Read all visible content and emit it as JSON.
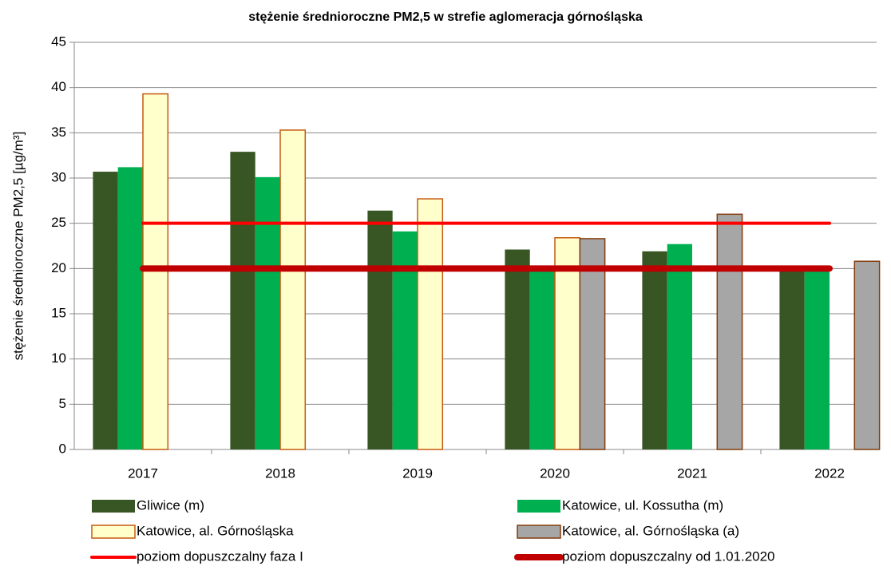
{
  "chart_data": {
    "type": "bar",
    "title": "stężenie średnioroczne PM2,5 w strefie aglomeracja górnośląska",
    "y_label": "stężenie średnioroczne PM2,5 [µg/m³]",
    "categories": [
      "2017",
      "2018",
      "2019",
      "2020",
      "2021",
      "2022"
    ],
    "series": [
      {
        "name": "Gliwice (m)",
        "color": "#375623",
        "values": [
          30.7,
          32.9,
          26.4,
          22.1,
          21.9,
          20
        ]
      },
      {
        "name": "Katowice, ul. Kossutha (m)",
        "color": "#00b050",
        "values": [
          31.2,
          30.1,
          24.1,
          20,
          22.7,
          20
        ]
      },
      {
        "name": "Katowice, al. Górnośląska",
        "color": "#ffffcc",
        "edge": "#c55a11",
        "values": [
          39.3,
          35.3,
          27.7,
          23.4,
          null,
          null
        ]
      },
      {
        "name": "Katowice, al. Górnośląska (a)",
        "color": "#a6a6a6",
        "edge": "#843c0c",
        "values": [
          null,
          null,
          null,
          23.3,
          26.0,
          20.8
        ]
      },
      {
        "name": "poziom dopuszczalny faza I",
        "type": "line",
        "color": "#ff0000",
        "values": [
          25,
          25,
          25,
          25,
          25,
          25
        ]
      },
      {
        "name": "poziom dopuszczalny od 1.01.2020",
        "type": "line",
        "color": "#c00000",
        "values": [
          20,
          20,
          20,
          20,
          20,
          20
        ]
      }
    ],
    "ylim": [
      0,
      45
    ],
    "yticks": [
      0,
      5,
      10,
      15,
      20,
      25,
      30,
      35,
      40,
      45
    ],
    "grid": true
  }
}
